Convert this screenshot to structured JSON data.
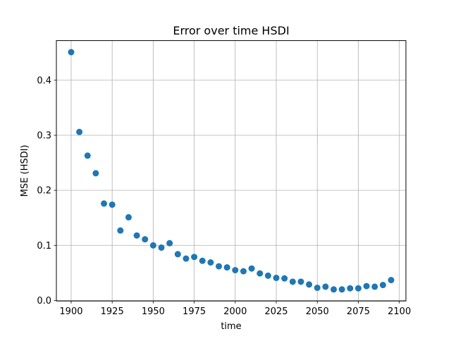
{
  "chart_data": {
    "type": "scatter",
    "title": "Error over time HSDI",
    "xlabel": "time",
    "ylabel": "MSE (HSDI)",
    "xlim": [
      1891,
      2104
    ],
    "ylim": [
      -0.001,
      0.472
    ],
    "grid": true,
    "point_color": "#1f77b4",
    "x_ticks": [
      1900,
      1925,
      1950,
      1975,
      2000,
      2025,
      2050,
      2075,
      2100
    ],
    "x_tick_labels": [
      "1900",
      "1925",
      "1950",
      "1975",
      "2000",
      "2025",
      "2050",
      "2075",
      "2100"
    ],
    "y_ticks": [
      0.0,
      0.1,
      0.2,
      0.3,
      0.4
    ],
    "y_tick_labels": [
      "0.0",
      "0.1",
      "0.2",
      "0.3",
      "0.4"
    ],
    "x": [
      1900,
      1905,
      1910,
      1915,
      1920,
      1925,
      1930,
      1935,
      1940,
      1945,
      1950,
      1955,
      1960,
      1965,
      1970,
      1975,
      1980,
      1985,
      1990,
      1995,
      2000,
      2005,
      2010,
      2015,
      2020,
      2025,
      2030,
      2035,
      2040,
      2045,
      2050,
      2055,
      2060,
      2065,
      2070,
      2075,
      2080,
      2085,
      2090,
      2095
    ],
    "y": [
      0.451,
      0.306,
      0.263,
      0.231,
      0.176,
      0.174,
      0.127,
      0.151,
      0.118,
      0.111,
      0.1,
      0.096,
      0.104,
      0.084,
      0.076,
      0.079,
      0.072,
      0.069,
      0.062,
      0.06,
      0.055,
      0.053,
      0.058,
      0.049,
      0.045,
      0.041,
      0.04,
      0.034,
      0.034,
      0.029,
      0.023,
      0.025,
      0.02,
      0.02,
      0.022,
      0.022,
      0.026,
      0.025,
      0.028,
      0.037
    ]
  }
}
